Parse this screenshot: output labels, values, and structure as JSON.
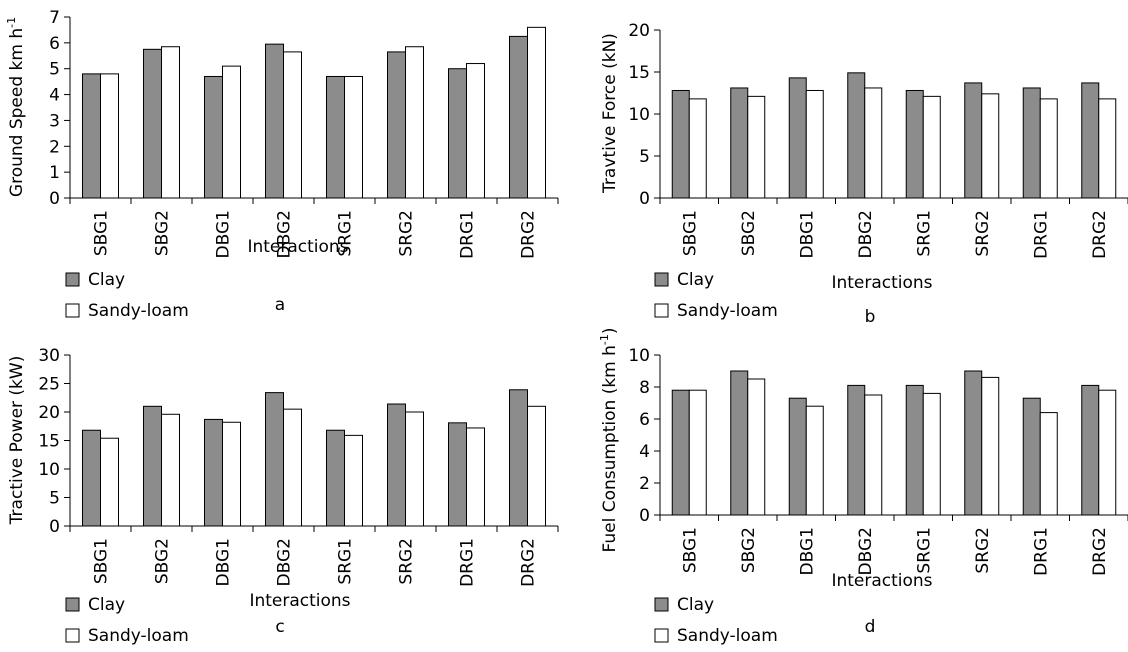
{
  "legend": {
    "series": [
      "Clay",
      "Sandy-loam"
    ]
  },
  "colors": {
    "clay": "#8c8c8c",
    "sandy_loam": "#ffffff",
    "stroke": "#000000"
  },
  "chart_data": [
    {
      "panel": "a",
      "type": "bar",
      "ylabel": "Ground Speed km h",
      "ylabel_sup": "-1",
      "xlabel": "Interactions",
      "ylim": [
        0,
        7
      ],
      "yticks": [
        0,
        1,
        2,
        3,
        4,
        5,
        6,
        7
      ],
      "categories": [
        "SBG1",
        "SBG2",
        "DBG1",
        "DBG2",
        "SRG1",
        "SRG2",
        "DRG1",
        "DRG2"
      ],
      "series": [
        {
          "name": "Clay",
          "values": [
            4.8,
            5.75,
            4.7,
            5.95,
            4.7,
            5.65,
            5.0,
            6.25
          ]
        },
        {
          "name": "Sandy-loam",
          "values": [
            4.8,
            5.85,
            5.1,
            5.65,
            4.7,
            5.85,
            5.2,
            6.6
          ]
        }
      ]
    },
    {
      "panel": "b",
      "type": "bar",
      "ylabel": "Travtive Force (kN)",
      "xlabel": "Interactions",
      "ylim": [
        0,
        20
      ],
      "yticks": [
        0,
        5,
        10,
        15,
        20
      ],
      "categories": [
        "SBG1",
        "SBG2",
        "DBG1",
        "DBG2",
        "SRG1",
        "SRG2",
        "DRG1",
        "DRG2"
      ],
      "series": [
        {
          "name": "Clay",
          "values": [
            12.8,
            13.1,
            14.3,
            14.9,
            12.8,
            13.7,
            13.1,
            13.7
          ]
        },
        {
          "name": "Sandy-loam",
          "values": [
            11.8,
            12.1,
            12.8,
            13.1,
            12.1,
            12.4,
            11.8,
            11.8
          ]
        }
      ]
    },
    {
      "panel": "c",
      "type": "bar",
      "ylabel": "Tractive Power (kW)",
      "xlabel": "Interactions",
      "ylim": [
        0,
        30
      ],
      "yticks": [
        0,
        5,
        10,
        15,
        20,
        25,
        30
      ],
      "categories": [
        "SBG1",
        "SBG2",
        "DBG1",
        "DBG2",
        "SRG1",
        "SRG2",
        "DRG1",
        "DRG2"
      ],
      "series": [
        {
          "name": "Clay",
          "values": [
            16.8,
            21.0,
            18.7,
            23.4,
            16.8,
            21.4,
            18.1,
            23.9
          ]
        },
        {
          "name": "Sandy-loam",
          "values": [
            15.4,
            19.6,
            18.2,
            20.5,
            15.9,
            20.0,
            17.2,
            21.0
          ]
        }
      ]
    },
    {
      "panel": "d",
      "type": "bar",
      "ylabel": "Fuel Consumption (km h",
      "ylabel_sup": "-1",
      "ylabel_suffix": ")",
      "xlabel": "Interactions",
      "ylim": [
        0,
        10
      ],
      "yticks": [
        0,
        2,
        4,
        6,
        8,
        10
      ],
      "categories": [
        "SBG1",
        "SBG2",
        "DBG1",
        "DBG2",
        "SRG1",
        "SRG2",
        "DRG1",
        "DRG2"
      ],
      "series": [
        {
          "name": "Clay",
          "values": [
            7.8,
            9.0,
            7.3,
            8.1,
            8.1,
            9.0,
            7.3,
            8.1
          ]
        },
        {
          "name": "Sandy-loam",
          "values": [
            7.8,
            8.5,
            6.8,
            7.5,
            7.6,
            8.6,
            6.4,
            7.8
          ]
        }
      ]
    }
  ]
}
